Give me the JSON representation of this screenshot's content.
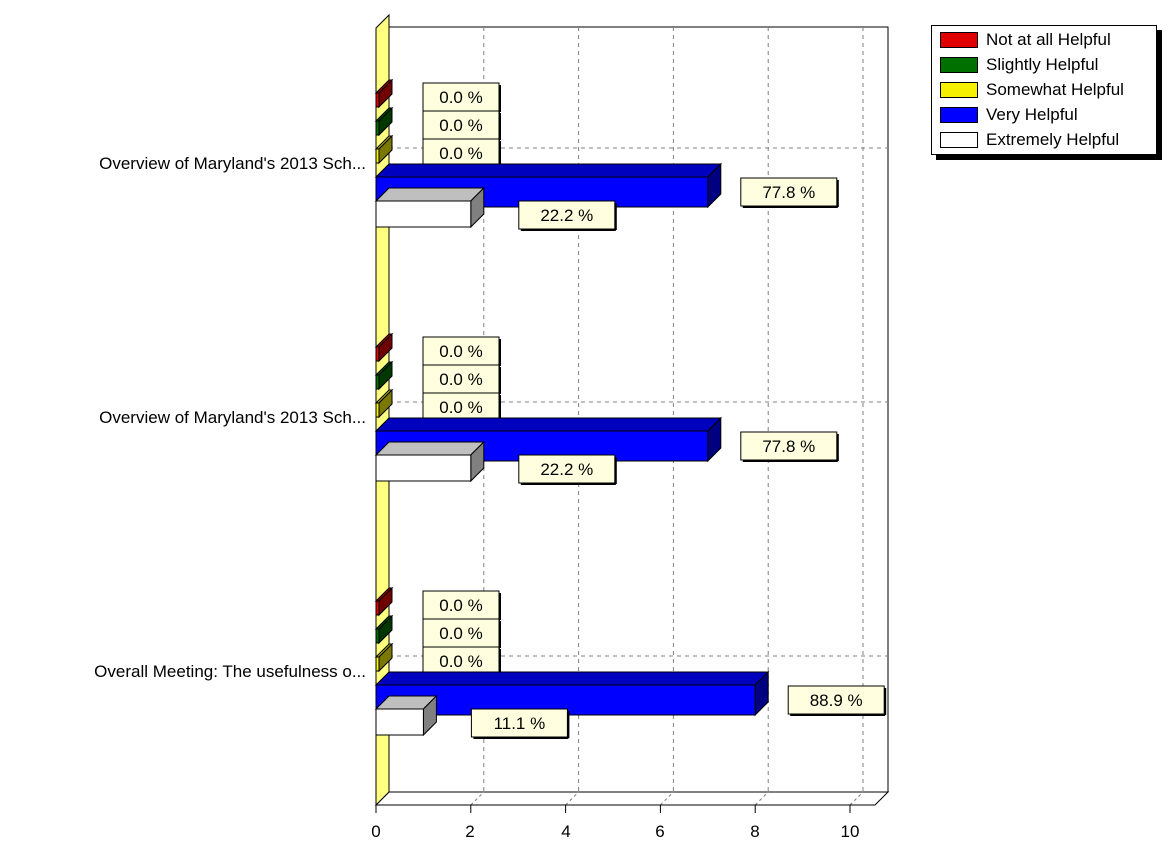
{
  "chart_data": {
    "type": "bar",
    "orientation": "horizontal",
    "categories": [
      "Overview of Maryland's 2013 Sch...",
      "Overview of Maryland's 2013 Sch...",
      "Overall Meeting: The usefulness o..."
    ],
    "series": [
      {
        "name": "Not at all Helpful",
        "color": "#e00000",
        "values": [
          0,
          0,
          0
        ],
        "labels": [
          "0.0 %",
          "0.0 %",
          "0.0 %"
        ]
      },
      {
        "name": "Slightly Helpful",
        "color": "#007000",
        "values": [
          0,
          0,
          0
        ],
        "labels": [
          "0.0 %",
          "0.0 %",
          "0.0 %"
        ]
      },
      {
        "name": "Somewhat Helpful",
        "color": "#f5f000",
        "values": [
          0,
          0,
          0
        ],
        "labels": [
          "0.0 %",
          "0.0 %",
          "0.0 %"
        ]
      },
      {
        "name": "Very Helpful",
        "color": "#0000ff",
        "values": [
          7,
          7,
          8
        ],
        "labels": [
          "77.8 %",
          "77.8 %",
          "88.9 %"
        ]
      },
      {
        "name": "Extremely Helpful",
        "color": "#ffffff",
        "values": [
          2,
          2,
          1
        ],
        "labels": [
          "22.2 %",
          "22.2 %",
          "11.1 %"
        ]
      }
    ],
    "x_ticks": [
      "0",
      "2",
      "4",
      "6",
      "8",
      "10"
    ],
    "xlim": [
      0,
      10
    ],
    "grid": true,
    "legend_position": "top-right"
  }
}
